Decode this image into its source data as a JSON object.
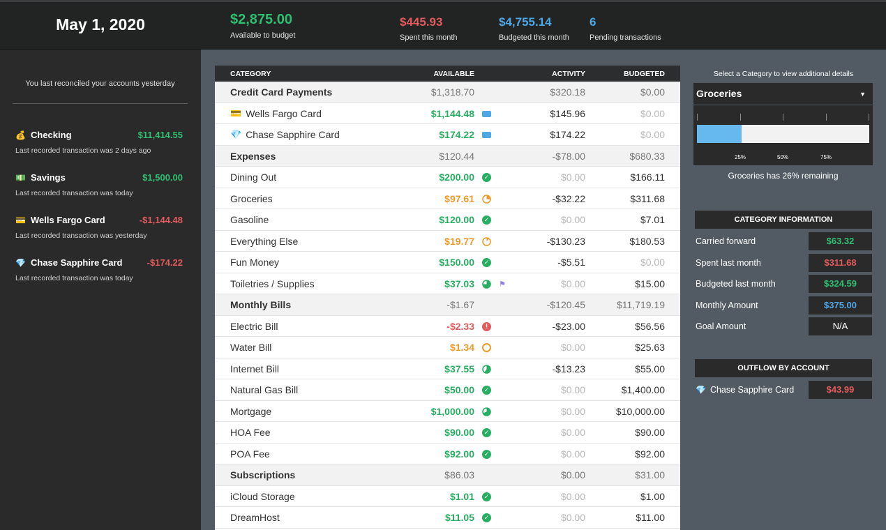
{
  "header": {
    "date": "May 1, 2020",
    "available": {
      "value": "$2,875.00",
      "label": "Available to budget"
    },
    "spent": {
      "value": "$445.93",
      "label": "Spent this month"
    },
    "budgeted": {
      "value": "$4,755.14",
      "label": "Budgeted this month"
    },
    "pending": {
      "value": "6",
      "label": "Pending transactions"
    }
  },
  "sidebar": {
    "reconcile_text": "You last reconciled your accounts yesterday",
    "accounts": [
      {
        "name": "Checking",
        "icon": "money-bag-icon",
        "glyph": "💰",
        "balance": "$11,414.55",
        "status": "pos",
        "sub": "Last recorded transaction was 2 days ago"
      },
      {
        "name": "Savings",
        "icon": "cash-icon",
        "glyph": "💵",
        "balance": "$1,500.00",
        "status": "pos",
        "sub": "Last recorded transaction was today"
      },
      {
        "name": "Wells Fargo Card",
        "icon": "credit-card-icon",
        "glyph": "💳",
        "balance": "-$1,144.48",
        "status": "neg",
        "sub": "Last recorded transaction was yesterday"
      },
      {
        "name": "Chase Sapphire Card",
        "icon": "diamond-icon",
        "glyph": "💎",
        "balance": "-$174.22",
        "status": "neg",
        "sub": "Last recorded transaction was today"
      }
    ]
  },
  "table": {
    "headers": {
      "category": "CATEGORY",
      "available": "AVAILABLE",
      "activity": "ACTIVITY",
      "budgeted": "BUDGETED"
    },
    "rows": [
      {
        "type": "group",
        "category": "Credit Card Payments",
        "available": "$1,318.70",
        "activity": "$320.18",
        "budgeted": "$0.00"
      },
      {
        "type": "item",
        "category": "Wells Fargo Card",
        "glyph": "💳",
        "available": "$1,144.48",
        "avail_color": "green",
        "indicator": "card",
        "activity": "$145.96",
        "act_muted": false,
        "budgeted": "$0.00",
        "bud_muted": true
      },
      {
        "type": "item",
        "category": "Chase Sapphire Card",
        "glyph": "💎",
        "available": "$174.22",
        "avail_color": "green",
        "indicator": "card",
        "activity": "$174.22",
        "act_muted": false,
        "budgeted": "$0.00",
        "bud_muted": true
      },
      {
        "type": "group",
        "category": "Expenses",
        "available": "$120.44",
        "activity": "-$78.00",
        "budgeted": "$680.33"
      },
      {
        "type": "item",
        "category": "Dining Out",
        "available": "$200.00",
        "avail_color": "green",
        "indicator": "check",
        "activity": "$0.00",
        "act_muted": true,
        "budgeted": "$166.11",
        "bud_muted": false
      },
      {
        "type": "item",
        "category": "Groceries",
        "available": "$97.61",
        "avail_color": "orange",
        "indicator": "pie",
        "pie_fraction": 0.26,
        "pie_color": "#ec9a29",
        "activity": "-$32.22",
        "act_muted": false,
        "budgeted": "$311.68",
        "bud_muted": false
      },
      {
        "type": "item",
        "category": "Gasoline",
        "available": "$120.00",
        "avail_color": "green",
        "indicator": "check",
        "activity": "$0.00",
        "act_muted": true,
        "budgeted": "$7.01",
        "bud_muted": false
      },
      {
        "type": "item",
        "category": "Everything Else",
        "available": "$19.77",
        "avail_color": "orange",
        "indicator": "pie",
        "pie_fraction": 0.1,
        "pie_color": "#ec9a29",
        "activity": "-$130.23",
        "act_muted": false,
        "budgeted": "$180.53",
        "bud_muted": false
      },
      {
        "type": "item",
        "category": "Fun Money",
        "available": "$150.00",
        "avail_color": "green",
        "indicator": "check",
        "activity": "-$5.51",
        "act_muted": false,
        "budgeted": "$0.00",
        "bud_muted": true
      },
      {
        "type": "item",
        "category": "Toiletries / Supplies",
        "available": "$37.03",
        "avail_color": "green",
        "indicator": "pie",
        "pie_fraction": 0.75,
        "pie_color": "#27ae60",
        "flag": true,
        "activity": "$0.00",
        "act_muted": true,
        "budgeted": "$15.00",
        "bud_muted": false
      },
      {
        "type": "group",
        "category": "Monthly Bills",
        "available": "-$1.67",
        "activity": "-$120.45",
        "budgeted": "$11,719.19"
      },
      {
        "type": "item",
        "category": "Electric Bill",
        "available": "-$2.33",
        "avail_color": "red",
        "indicator": "alert",
        "activity": "-$23.00",
        "act_muted": false,
        "budgeted": "$56.56",
        "bud_muted": false
      },
      {
        "type": "item",
        "category": "Water Bill",
        "available": "$1.34",
        "avail_color": "orange",
        "indicator": "ring",
        "activity": "$0.00",
        "act_muted": true,
        "budgeted": "$25.63",
        "bud_muted": false
      },
      {
        "type": "item",
        "category": "Internet Bill",
        "available": "$37.55",
        "avail_color": "green",
        "indicator": "pie",
        "pie_fraction": 0.6,
        "pie_color": "#27ae60",
        "activity": "-$13.23",
        "act_muted": false,
        "budgeted": "$55.00",
        "bud_muted": false
      },
      {
        "type": "item",
        "category": "Natural Gas Bill",
        "available": "$50.00",
        "avail_color": "green",
        "indicator": "check",
        "activity": "$0.00",
        "act_muted": true,
        "budgeted": "$1,400.00",
        "bud_muted": false
      },
      {
        "type": "item",
        "category": "Mortgage",
        "available": "$1,000.00",
        "avail_color": "green",
        "indicator": "pie",
        "pie_fraction": 0.7,
        "pie_color": "#27ae60",
        "activity": "$0.00",
        "act_muted": true,
        "budgeted": "$10,000.00",
        "bud_muted": false
      },
      {
        "type": "item",
        "category": "HOA Fee",
        "available": "$90.00",
        "avail_color": "green",
        "indicator": "check",
        "activity": "$0.00",
        "act_muted": true,
        "budgeted": "$90.00",
        "bud_muted": false
      },
      {
        "type": "item",
        "category": "POA Fee",
        "available": "$92.00",
        "avail_color": "green",
        "indicator": "check",
        "activity": "$0.00",
        "act_muted": true,
        "budgeted": "$92.00",
        "bud_muted": false
      },
      {
        "type": "group",
        "category": "Subscriptions",
        "available": "$86.03",
        "activity": "$0.00",
        "budgeted": "$31.00"
      },
      {
        "type": "item",
        "category": "iCloud Storage",
        "available": "$1.01",
        "avail_color": "green",
        "indicator": "check",
        "activity": "$0.00",
        "act_muted": true,
        "budgeted": "$1.00",
        "bud_muted": false
      },
      {
        "type": "item",
        "category": "DreamHost",
        "available": "$11.05",
        "avail_color": "green",
        "indicator": "check",
        "activity": "$0.00",
        "act_muted": true,
        "budgeted": "$11.00",
        "bud_muted": false
      }
    ]
  },
  "details": {
    "select_label": "Select a Category to view additional details",
    "selected_category": "Groceries",
    "remaining_fraction": 0.26,
    "gauge_ticks": [
      "25%",
      "50%",
      "75%"
    ],
    "remaining_text": "Groceries has 26% remaining",
    "info_title": "CATEGORY INFORMATION",
    "info": [
      {
        "label": "Carried forward",
        "value": "$63.32",
        "color": "green"
      },
      {
        "label": "Spent last month",
        "value": "$311.68",
        "color": "red"
      },
      {
        "label": "Budgeted last month",
        "value": "$324.59",
        "color": "green"
      },
      {
        "label": "Monthly Amount",
        "value": "$375.00",
        "color": "blue"
      },
      {
        "label": "Goal Amount",
        "value": "N/A",
        "color": "white"
      }
    ],
    "outflow_title": "OUTFLOW BY ACCOUNT",
    "outflow": [
      {
        "label": "Chase Sapphire Card",
        "glyph": "💎",
        "value": "$43.99",
        "color": "red"
      }
    ]
  },
  "colors": {
    "green": "#27ae60",
    "orange": "#ec9a29",
    "red": "#e05c5c",
    "blue": "#4ea8e6"
  }
}
